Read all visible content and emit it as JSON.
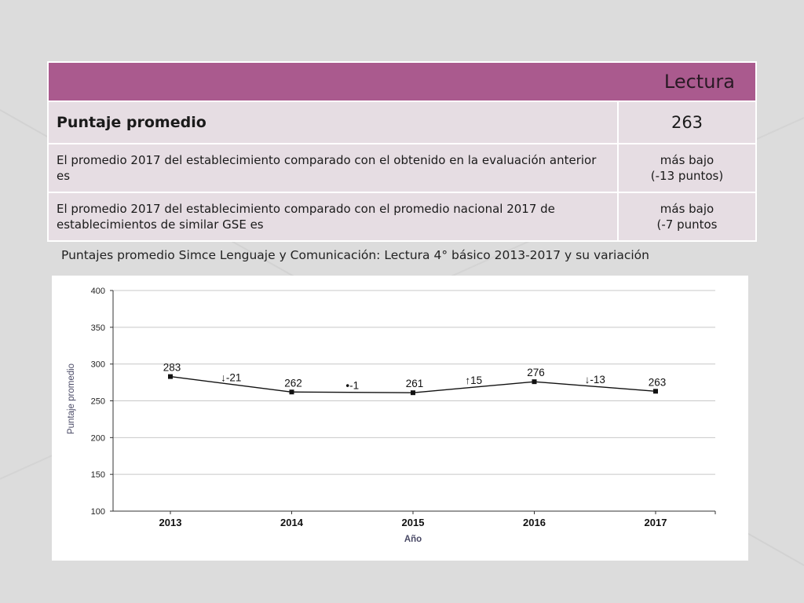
{
  "table": {
    "header": "Lectura",
    "rows": [
      {
        "label": "Puntaje promedio",
        "value": "263",
        "value2": ""
      },
      {
        "label": "El promedio 2017 del establecimiento comparado con el obtenido en la evaluación anterior es",
        "value": "más bajo",
        "value2": "(-13 puntos)"
      },
      {
        "label": "El promedio 2017 del establecimiento comparado con el promedio nacional 2017 de establecimientos de similar GSE es",
        "value": "más bajo",
        "value2": "(-7 puntos"
      }
    ]
  },
  "caption": "Puntajes promedio Simce Lenguaje y Comunicación: Lectura 4° básico 2013-2017 y su variación",
  "chart_data": {
    "type": "line",
    "x": [
      "2013",
      "2014",
      "2015",
      "2016",
      "2017"
    ],
    "series": [
      {
        "values": [
          283,
          262,
          261,
          276,
          263
        ]
      }
    ],
    "data_labels": [
      "283",
      "262",
      "261",
      "276",
      "263"
    ],
    "variations": [
      "↓-21",
      "•-1",
      "↑15",
      "↓-13"
    ],
    "xlabel": "Año",
    "ylabel": "Puntaje promedio",
    "ylim": [
      100,
      400
    ],
    "yticks": [
      100,
      150,
      200,
      250,
      300,
      350,
      400
    ],
    "grid": true,
    "colors": {
      "line": "#111111",
      "grid": "#c8c8c8",
      "axis_label": "#4a4a66"
    }
  }
}
